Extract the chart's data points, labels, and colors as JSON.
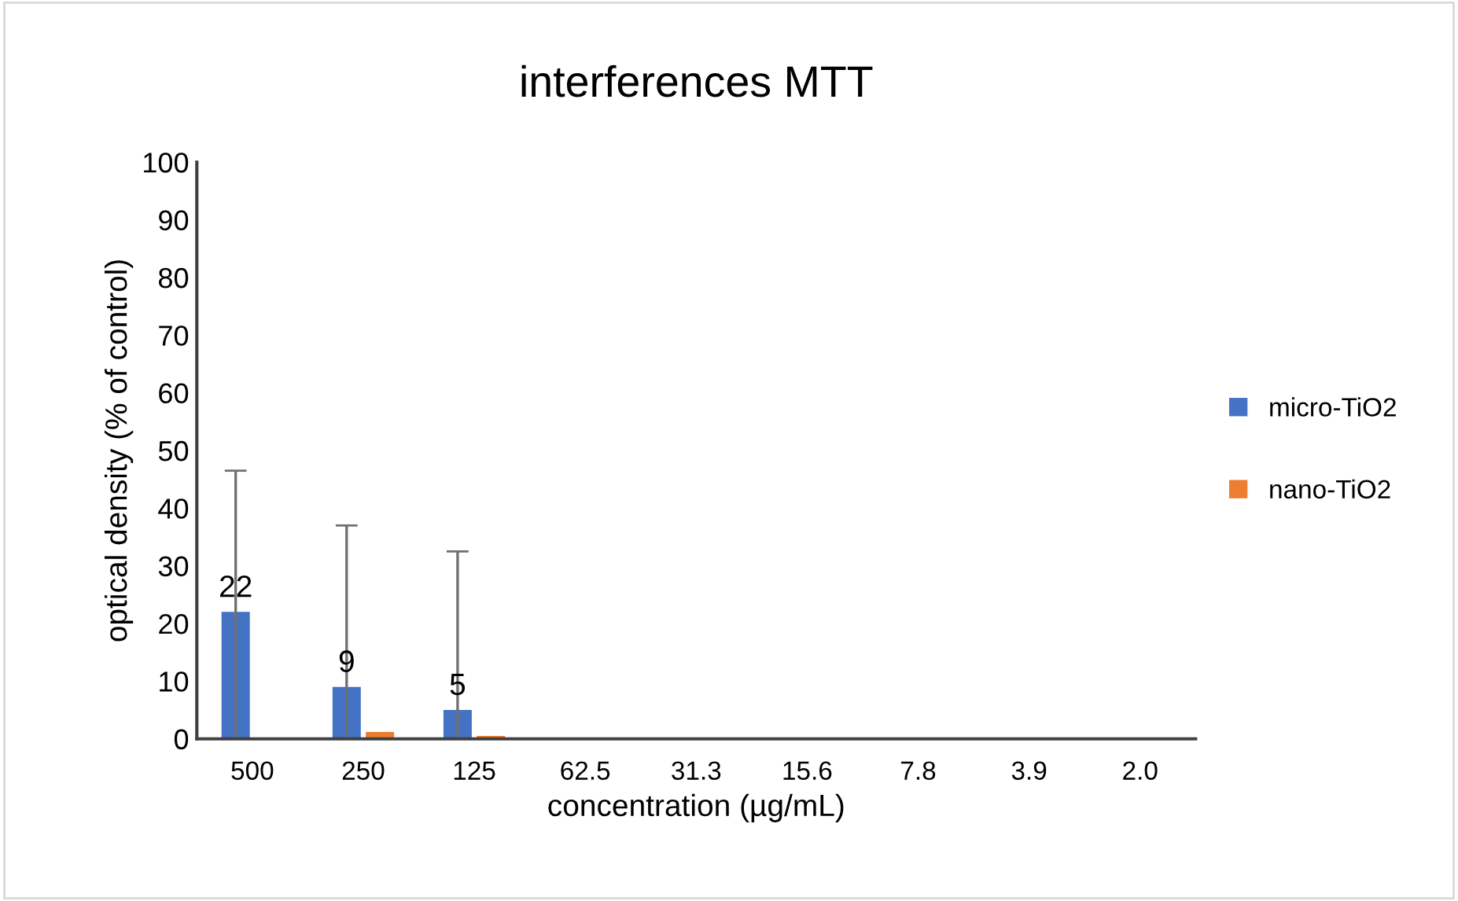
{
  "chart_data": {
    "type": "bar",
    "title": "interferences MTT",
    "xlabel": "concentration (µg/mL)",
    "ylabel": "optical density (% of control)",
    "categories": [
      "500",
      "250",
      "125",
      "62.5",
      "31.3",
      "15.6",
      "7.8",
      "3.9",
      "2.0"
    ],
    "series": [
      {
        "name": "micro-TiO2",
        "color": "#4472c4",
        "values": [
          22,
          9,
          5,
          0,
          0,
          0,
          0,
          0,
          0
        ],
        "value_labels": [
          "22",
          "9",
          "5",
          null,
          null,
          null,
          null,
          null,
          null
        ],
        "errors": [
          [
            0,
            46.5
          ],
          [
            0,
            37
          ],
          [
            0,
            32.5
          ],
          null,
          null,
          null,
          null,
          null,
          null
        ]
      },
      {
        "name": "nano-TiO2",
        "color": "#ed7d31",
        "values": [
          0,
          1.2,
          0.5,
          0,
          0,
          0,
          0,
          0,
          0
        ]
      }
    ],
    "ylim": [
      0,
      100
    ],
    "yticks": [
      0,
      10,
      20,
      30,
      40,
      50,
      60,
      70,
      80,
      90,
      100
    ],
    "grid": false,
    "legend": "right"
  }
}
